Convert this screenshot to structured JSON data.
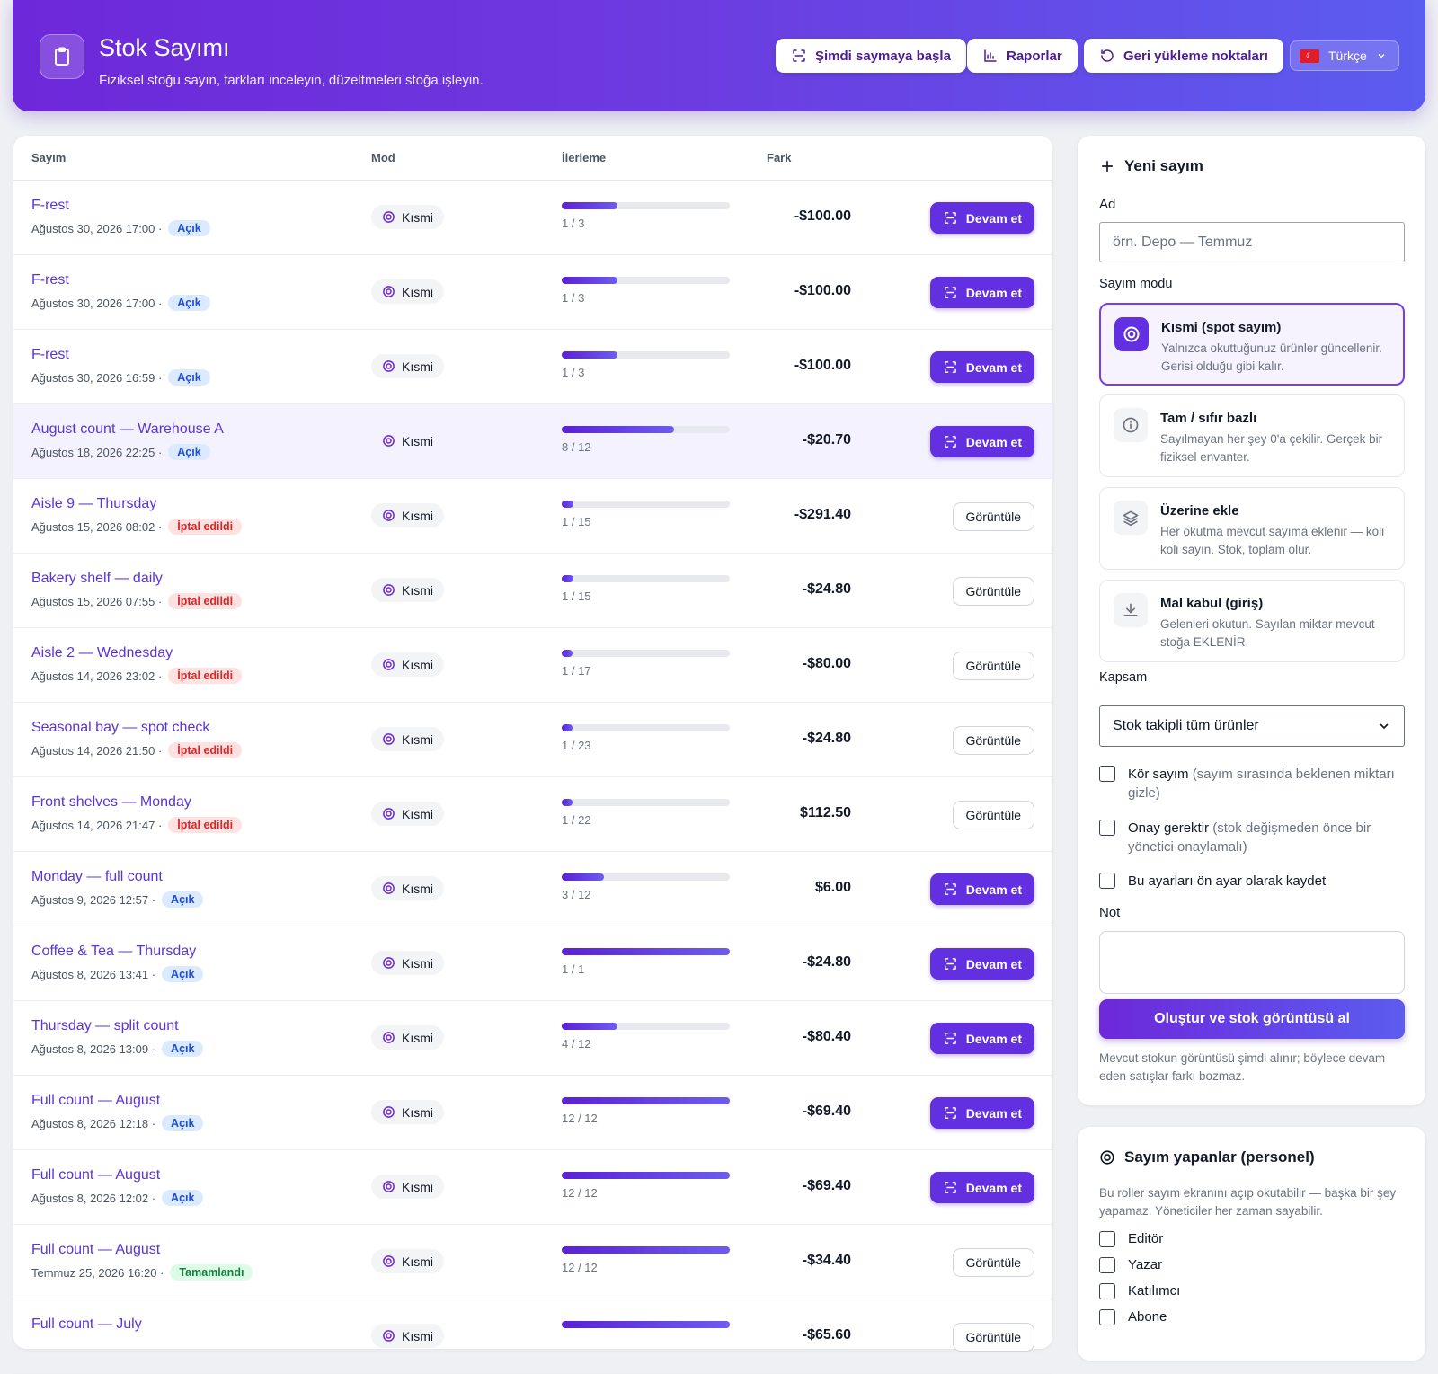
{
  "header": {
    "title": "Stok Sayımı",
    "subtitle": "Fiziksel stoğu sayın, farkları inceleyin, düzeltmeleri stoğa işleyin.",
    "btn_start": "Şimdi saymaya başla",
    "btn_reports": "Raporlar",
    "btn_restore": "Geri yükleme noktaları",
    "language": "Türkçe"
  },
  "table": {
    "headers": {
      "count": "Sayım",
      "mode": "Mod",
      "progress": "İlerleme",
      "diff": "Fark"
    },
    "rows": [
      {
        "name": "F-rest",
        "date": "Ağustos 30, 2026 17:00 ·",
        "status": "Açık",
        "status_kind": "open",
        "mode": "Kısmi",
        "progress": 0.333,
        "progress_text": "1 / 3",
        "diff": "-$100.00",
        "action": "Devam et",
        "action_kind": "primary"
      },
      {
        "name": "F-rest",
        "date": "Ağustos 30, 2026 17:00 ·",
        "status": "Açık",
        "status_kind": "open",
        "mode": "Kısmi",
        "progress": 0.333,
        "progress_text": "1 / 3",
        "diff": "-$100.00",
        "action": "Devam et",
        "action_kind": "primary"
      },
      {
        "name": "F-rest",
        "date": "Ağustos 30, 2026 16:59 ·",
        "status": "Açık",
        "status_kind": "open",
        "mode": "Kısmi",
        "progress": 0.333,
        "progress_text": "1 / 3",
        "diff": "-$100.00",
        "action": "Devam et",
        "action_kind": "primary"
      },
      {
        "name": "August count — Warehouse A",
        "date": "Ağustos 18, 2026 22:25 ·",
        "status": "Açık",
        "status_kind": "open",
        "mode": "Kısmi",
        "progress": 0.667,
        "progress_text": "8 / 12",
        "diff": "-$20.70",
        "action": "Devam et",
        "action_kind": "primary",
        "highlight": true
      },
      {
        "name": "Aisle 9 — Thursday",
        "date": "Ağustos 15, 2026 08:02 ·",
        "status": "İptal edildi",
        "status_kind": "cancel",
        "mode": "Kısmi",
        "progress": 0.067,
        "progress_text": "1 / 15",
        "diff": "-$291.40",
        "action": "Görüntüle",
        "action_kind": "secondary"
      },
      {
        "name": "Bakery shelf — daily",
        "date": "Ağustos 15, 2026 07:55 ·",
        "status": "İptal edildi",
        "status_kind": "cancel",
        "mode": "Kısmi",
        "progress": 0.067,
        "progress_text": "1 / 15",
        "diff": "-$24.80",
        "action": "Görüntüle",
        "action_kind": "secondary"
      },
      {
        "name": "Aisle 2 — Wednesday",
        "date": "Ağustos 14, 2026 23:02 ·",
        "status": "İptal edildi",
        "status_kind": "cancel",
        "mode": "Kısmi",
        "progress": 0.059,
        "progress_text": "1 / 17",
        "diff": "-$80.00",
        "action": "Görüntüle",
        "action_kind": "secondary"
      },
      {
        "name": "Seasonal bay — spot check",
        "date": "Ağustos 14, 2026 21:50 ·",
        "status": "İptal edildi",
        "status_kind": "cancel",
        "mode": "Kısmi",
        "progress": 0.043,
        "progress_text": "1 / 23",
        "diff": "-$24.80",
        "action": "Görüntüle",
        "action_kind": "secondary"
      },
      {
        "name": "Front shelves — Monday",
        "date": "Ağustos 14, 2026 21:47 ·",
        "status": "İptal edildi",
        "status_kind": "cancel",
        "mode": "Kısmi",
        "progress": 0.045,
        "progress_text": "1 / 22",
        "diff": "$112.50",
        "action": "Görüntüle",
        "action_kind": "secondary"
      },
      {
        "name": "Monday — full count",
        "date": "Ağustos 9, 2026 12:57 ·",
        "status": "Açık",
        "status_kind": "open",
        "mode": "Kısmi",
        "progress": 0.25,
        "progress_text": "3 / 12",
        "diff": "$6.00",
        "action": "Devam et",
        "action_kind": "primary"
      },
      {
        "name": "Coffee & Tea — Thursday",
        "date": "Ağustos 8, 2026 13:41 ·",
        "status": "Açık",
        "status_kind": "open",
        "mode": "Kısmi",
        "progress": 1.0,
        "progress_text": "1 / 1",
        "diff": "-$24.80",
        "action": "Devam et",
        "action_kind": "primary"
      },
      {
        "name": "Thursday — split count",
        "date": "Ağustos 8, 2026 13:09 ·",
        "status": "Açık",
        "status_kind": "open",
        "mode": "Kısmi",
        "progress": 0.333,
        "progress_text": "4 / 12",
        "diff": "-$80.40",
        "action": "Devam et",
        "action_kind": "primary"
      },
      {
        "name": "Full count — August",
        "date": "Ağustos 8, 2026 12:18 ·",
        "status": "Açık",
        "status_kind": "open",
        "mode": "Kısmi",
        "progress": 1.0,
        "progress_text": "12 / 12",
        "diff": "-$69.40",
        "action": "Devam et",
        "action_kind": "primary"
      },
      {
        "name": "Full count — August",
        "date": "Ağustos 8, 2026 12:02 ·",
        "status": "Açık",
        "status_kind": "open",
        "mode": "Kısmi",
        "progress": 1.0,
        "progress_text": "12 / 12",
        "diff": "-$69.40",
        "action": "Devam et",
        "action_kind": "primary"
      },
      {
        "name": "Full count — August",
        "date": "Temmuz 25, 2026 16:20 ·",
        "status": "Tamamlandı",
        "status_kind": "done",
        "mode": "Kısmi",
        "progress": 1.0,
        "progress_text": "12 / 12",
        "diff": "-$34.40",
        "action": "Görüntüle",
        "action_kind": "secondary"
      },
      {
        "name": "Full count — July",
        "date": "",
        "status": "",
        "status_kind": "open",
        "mode": "Kısmi",
        "progress": 1.0,
        "progress_text": "",
        "diff": "-$65.60",
        "action": "Görüntüle",
        "action_kind": "secondary"
      }
    ]
  },
  "new_count": {
    "title": "Yeni sayım",
    "name_label": "Ad",
    "name_placeholder": "örn. Depo — Temmuz",
    "mode_label": "Sayım modu",
    "modes": [
      {
        "title": "Kısmi (spot sayım)",
        "desc": "Yalnızca okuttuğunuz ürünler güncellenir. Gerisi olduğu gibi kalır.",
        "icon": "target-icon"
      },
      {
        "title": "Tam / sıfır bazlı",
        "desc": "Sayılmayan her şey 0'a çekilir. Gerçek bir fiziksel envanter.",
        "icon": "info-icon"
      },
      {
        "title": "Üzerine ekle",
        "desc": "Her okutma mevcut sayıma eklenir — koli koli sayın. Stok, toplam olur.",
        "icon": "layers-icon"
      },
      {
        "title": "Mal kabul (giriş)",
        "desc": "Gelenleri okutun. Sayılan miktar mevcut stoğa EKLENİR.",
        "icon": "download-icon"
      }
    ],
    "scope_label": "Kapsam",
    "scope_value": "Stok takipli tüm ürünler",
    "blind_main": "Kör sayım",
    "blind_hint": "(sayım sırasında beklenen miktarı gizle)",
    "approval_main": "Onay gerektir",
    "approval_hint": "(stok değişmeden önce bir yönetici onaylamalı)",
    "preset": "Bu ayarları ön ayar olarak kaydet",
    "note_label": "Not",
    "create_button": "Oluştur ve stok görüntüsü al",
    "help": "Mevcut stokun görüntüsü şimdi alınır; böylece devam eden satışlar farkı bozmaz."
  },
  "counters": {
    "title": "Sayım yapanlar (personel)",
    "desc": "Bu roller sayım ekranını açıp okutabilir — başka bir şey yapamaz. Yöneticiler her zaman sayabilir.",
    "roles": [
      "Editör",
      "Yazar",
      "Katılımcı",
      "Abone"
    ]
  }
}
